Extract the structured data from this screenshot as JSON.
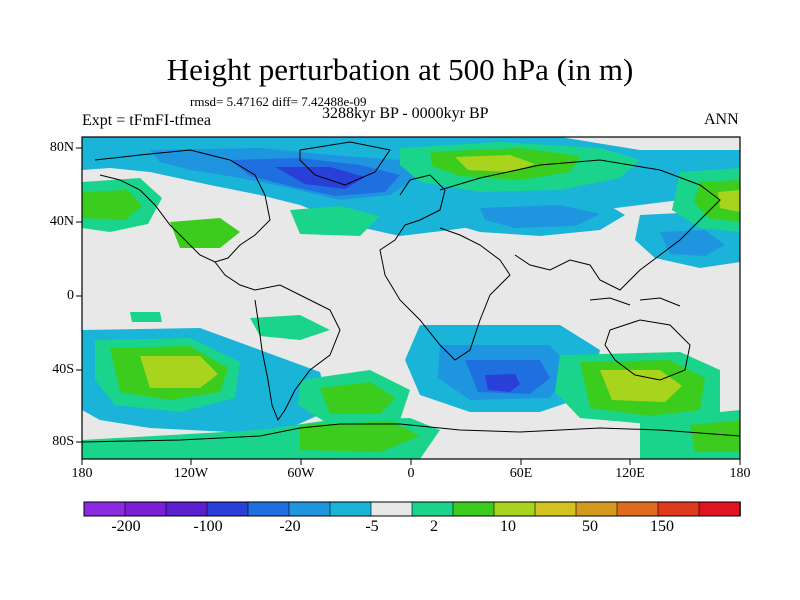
{
  "title": "Height perturbation at 500 hPa (in m)",
  "stats": "rmsd= 5.47162 diff= 7.42488e-09",
  "experiment": "Expt = tFmFI-tfmea",
  "period": "3288kyr BP - 0000kyr BP",
  "season": "ANN",
  "lat_labels": [
    "80N",
    "40N",
    "0",
    "40S",
    "80S"
  ],
  "lon_labels": [
    "180",
    "120W",
    "60W",
    "0",
    "60E",
    "120E",
    "180"
  ],
  "colorbar": {
    "labels": [
      "-200",
      "-100",
      "-20",
      "-5",
      "2",
      "10",
      "50",
      "150"
    ],
    "colors": [
      "#8a2be2",
      "#7a1fd6",
      "#5b1fd0",
      "#2a3fd8",
      "#1f6fe0",
      "#1f95e0",
      "#19b4d8",
      "#e8e8e8",
      "#19d48a",
      "#3ccc1e",
      "#a8d41e",
      "#d4c21e",
      "#d49a1e",
      "#e06a1e",
      "#e03a1e",
      "#e0141e"
    ]
  },
  "palette": {
    "background": "#e8e8e8",
    "neg_light": "#19b4d8",
    "neg_mid": "#1f95e0",
    "neg_deep": "#1f6fe0",
    "neg_core": "#2a3fd8",
    "pos_light": "#19d48a",
    "pos_mid": "#3ccc1e",
    "pos_high": "#a8d41e"
  }
}
